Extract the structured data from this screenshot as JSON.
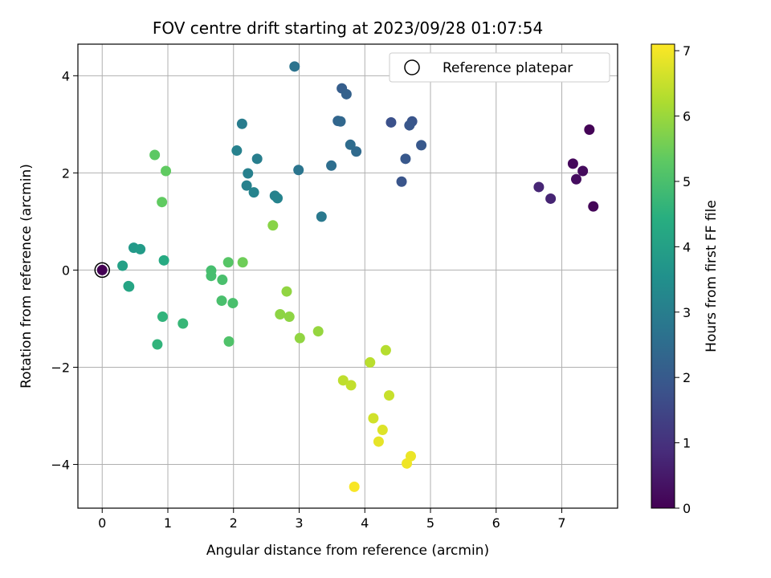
{
  "chart_data": {
    "type": "scatter",
    "title": "FOV centre drift starting at 2023/09/28 01:07:54",
    "xlabel": "Angular distance from reference (arcmin)",
    "ylabel": "Rotation from reference (arcmin)",
    "xlim": [
      -0.37,
      7.85
    ],
    "ylim": [
      -4.9,
      4.65
    ],
    "xticks": [
      "0",
      "1",
      "2",
      "3",
      "4",
      "5",
      "6",
      "7"
    ],
    "yticks": [
      "−4",
      "−2",
      "0",
      "2",
      "4"
    ],
    "grid": true,
    "legend": {
      "placement": "top-right",
      "entries": [
        "Reference platepar"
      ]
    },
    "reference": {
      "x": 0,
      "y": 0
    },
    "colorbar": {
      "label": "Hours from first FF file",
      "range": [
        0,
        7.1
      ],
      "ticks": [
        "0",
        "1",
        "2",
        "3",
        "4",
        "5",
        "6",
        "7"
      ],
      "colormap": "viridis"
    },
    "points": [
      {
        "x": 7.42,
        "y": 2.89,
        "c": 0.05
      },
      {
        "x": 7.17,
        "y": 2.19,
        "c": 0.15
      },
      {
        "x": 7.32,
        "y": 2.04,
        "c": 0.2
      },
      {
        "x": 7.22,
        "y": 1.87,
        "c": 0.25
      },
      {
        "x": 7.48,
        "y": 1.31,
        "c": 0.1
      },
      {
        "x": 6.65,
        "y": 1.71,
        "c": 0.75
      },
      {
        "x": 6.83,
        "y": 1.47,
        "c": 0.7
      },
      {
        "x": 4.4,
        "y": 3.04,
        "c": 1.75
      },
      {
        "x": 4.72,
        "y": 3.06,
        "c": 1.85
      },
      {
        "x": 4.68,
        "y": 2.98,
        "c": 1.9
      },
      {
        "x": 4.86,
        "y": 2.57,
        "c": 1.95
      },
      {
        "x": 4.62,
        "y": 2.29,
        "c": 1.95
      },
      {
        "x": 4.56,
        "y": 1.82,
        "c": 1.85
      },
      {
        "x": 3.65,
        "y": 3.74,
        "c": 2.1
      },
      {
        "x": 3.72,
        "y": 3.62,
        "c": 2.2
      },
      {
        "x": 3.59,
        "y": 3.07,
        "c": 2.3
      },
      {
        "x": 3.63,
        "y": 3.06,
        "c": 2.35
      },
      {
        "x": 3.78,
        "y": 2.58,
        "c": 2.5
      },
      {
        "x": 3.87,
        "y": 2.44,
        "c": 2.45
      },
      {
        "x": 3.49,
        "y": 2.15,
        "c": 2.55
      },
      {
        "x": 2.93,
        "y": 4.19,
        "c": 2.7
      },
      {
        "x": 2.99,
        "y": 2.06,
        "c": 2.75
      },
      {
        "x": 3.34,
        "y": 1.1,
        "c": 2.85
      },
      {
        "x": 2.13,
        "y": 3.01,
        "c": 2.95
      },
      {
        "x": 2.05,
        "y": 2.46,
        "c": 3.1
      },
      {
        "x": 2.36,
        "y": 2.29,
        "c": 3.0
      },
      {
        "x": 2.22,
        "y": 1.99,
        "c": 3.05
      },
      {
        "x": 2.2,
        "y": 1.74,
        "c": 3.1
      },
      {
        "x": 2.31,
        "y": 1.6,
        "c": 3.15
      },
      {
        "x": 2.63,
        "y": 1.53,
        "c": 3.1
      },
      {
        "x": 2.67,
        "y": 1.48,
        "c": 3.15
      },
      {
        "x": 0.48,
        "y": 0.46,
        "c": 3.8
      },
      {
        "x": 0.58,
        "y": 0.43,
        "c": 3.85
      },
      {
        "x": 0.31,
        "y": 0.09,
        "c": 4.0
      },
      {
        "x": 0.4,
        "y": -0.33,
        "c": 4.1
      },
      {
        "x": 0.41,
        "y": -0.34,
        "c": 4.15
      },
      {
        "x": 0.94,
        "y": 0.2,
        "c": 4.3
      },
      {
        "x": 0.8,
        "y": 2.37,
        "c": 5.3
      },
      {
        "x": 0.97,
        "y": 2.04,
        "c": 5.35
      },
      {
        "x": 0.91,
        "y": 1.4,
        "c": 5.35
      },
      {
        "x": 0.92,
        "y": -0.96,
        "c": 4.6
      },
      {
        "x": 0.84,
        "y": -1.53,
        "c": 4.6
      },
      {
        "x": 1.23,
        "y": -1.1,
        "c": 4.7
      },
      {
        "x": 1.66,
        "y": -0.01,
        "c": 4.95
      },
      {
        "x": 1.66,
        "y": -0.12,
        "c": 4.95
      },
      {
        "x": 1.83,
        "y": -0.2,
        "c": 5.0
      },
      {
        "x": 1.92,
        "y": 0.16,
        "c": 5.2
      },
      {
        "x": 2.14,
        "y": 0.16,
        "c": 5.5
      },
      {
        "x": 1.82,
        "y": -0.63,
        "c": 5.0
      },
      {
        "x": 1.99,
        "y": -0.68,
        "c": 5.0
      },
      {
        "x": 1.93,
        "y": -1.47,
        "c": 5.1
      },
      {
        "x": 2.6,
        "y": 0.92,
        "c": 5.8
      },
      {
        "x": 2.81,
        "y": -0.44,
        "c": 5.9
      },
      {
        "x": 2.71,
        "y": -0.91,
        "c": 5.85
      },
      {
        "x": 2.85,
        "y": -0.96,
        "c": 5.85
      },
      {
        "x": 3.01,
        "y": -1.4,
        "c": 5.9
      },
      {
        "x": 3.29,
        "y": -1.26,
        "c": 5.95
      },
      {
        "x": 4.32,
        "y": -1.65,
        "c": 6.3
      },
      {
        "x": 4.08,
        "y": -1.9,
        "c": 6.35
      },
      {
        "x": 3.67,
        "y": -2.27,
        "c": 6.4
      },
      {
        "x": 3.79,
        "y": -2.37,
        "c": 6.45
      },
      {
        "x": 4.37,
        "y": -2.58,
        "c": 6.5
      },
      {
        "x": 4.13,
        "y": -3.05,
        "c": 6.6
      },
      {
        "x": 4.27,
        "y": -3.29,
        "c": 6.75
      },
      {
        "x": 4.21,
        "y": -3.53,
        "c": 6.85
      },
      {
        "x": 4.7,
        "y": -3.83,
        "c": 6.9
      },
      {
        "x": 4.64,
        "y": -3.98,
        "c": 6.95
      },
      {
        "x": 3.84,
        "y": -4.46,
        "c": 7.05
      }
    ]
  }
}
